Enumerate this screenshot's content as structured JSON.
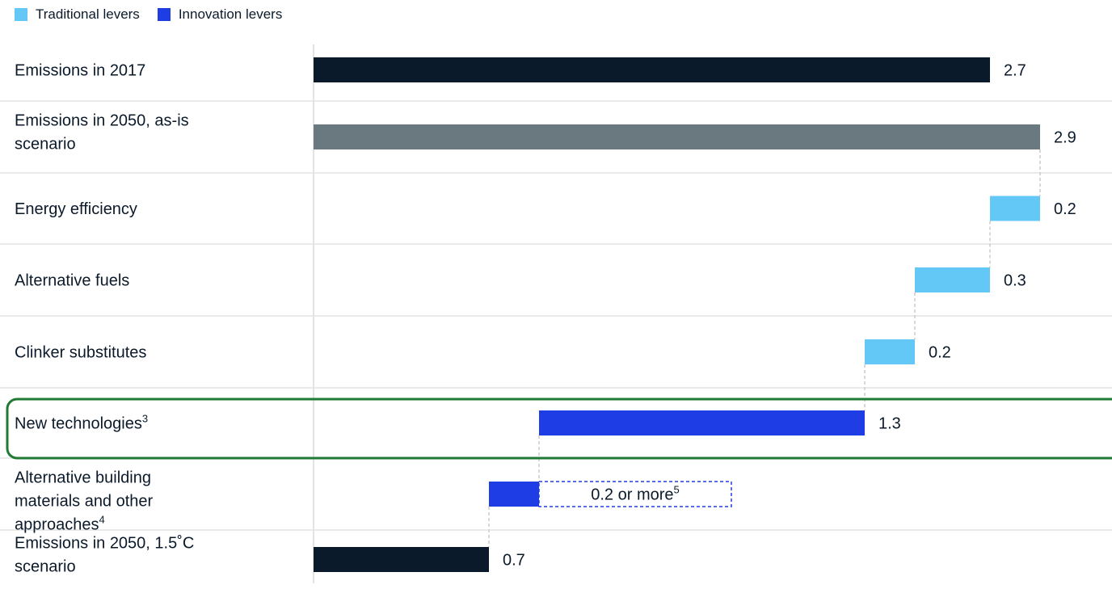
{
  "legend": [
    {
      "label": "Traditional levers",
      "color": "#64c8f7"
    },
    {
      "label": "Innovation levers",
      "color": "#1f3de5"
    }
  ],
  "colors": {
    "emissions": "#0b1a2a",
    "as_is": "#6a7880",
    "traditional": "#64c8f7",
    "innovation": "#1f3de5",
    "highlight": "#1f7a33",
    "grid": "#e3e3e3"
  },
  "chart_data": {
    "type": "bar",
    "orientation": "horizontal-waterfall",
    "xlim": [
      0,
      3.0
    ],
    "categories": [
      {
        "label": "Emissions in 2017",
        "sup": "",
        "value": 2.7,
        "value_label": "2.7",
        "kind": "total"
      },
      {
        "label": "Emissions in 2050, as-is scenario",
        "sup": "",
        "value": 2.9,
        "value_label": "2.9",
        "kind": "as_is"
      },
      {
        "label": "Energy efficiency",
        "sup": "",
        "value": 0.2,
        "value_label": "0.2",
        "kind": "traditional"
      },
      {
        "label": "Alternative fuels",
        "sup": "",
        "value": 0.3,
        "value_label": "0.3",
        "kind": "traditional"
      },
      {
        "label": "Clinker substitutes",
        "sup": "",
        "value": 0.2,
        "value_label": "0.2",
        "kind": "traditional"
      },
      {
        "label": "New technologies",
        "sup": "3",
        "value": 1.3,
        "value_label": "1.3",
        "kind": "innovation",
        "highlighted": true
      },
      {
        "label": "Alternative building materials and other approaches",
        "sup": "4",
        "value": 0.2,
        "value_label": "0.2 or more",
        "value_sup": "5",
        "kind": "innovation",
        "dashed_extension": true
      },
      {
        "label": "Emissions in 2050, 1.5˚C scenario",
        "sup": "",
        "value": 0.7,
        "value_label": "0.7",
        "kind": "total"
      }
    ]
  }
}
